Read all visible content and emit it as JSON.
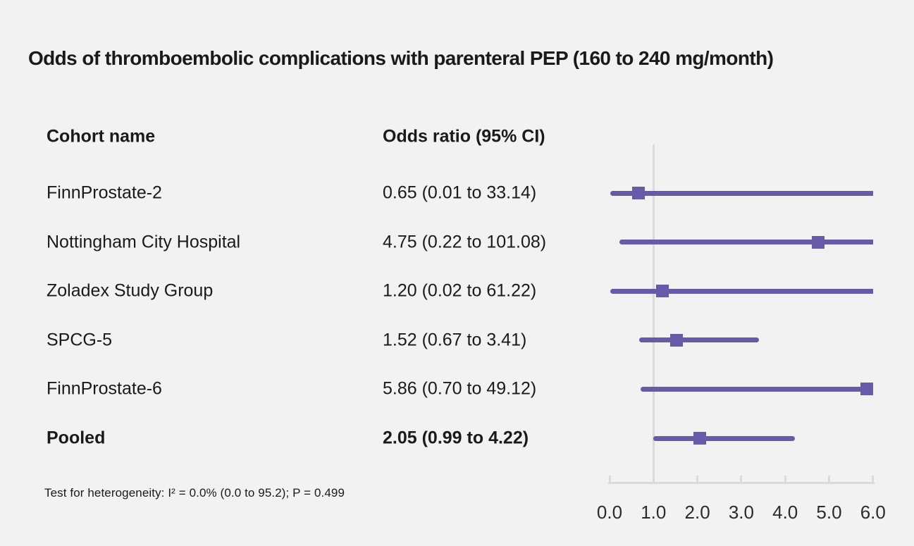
{
  "title": "Odds of thromboembolic complications with parenteral PEP (160 to 240 mg/month)",
  "columns": {
    "cohort": "Cohort name",
    "odds_ratio": "Odds ratio (95% CI)"
  },
  "footnote": "Test for heterogeneity: I² = 0.0% (0.0 to 95.2); P = 0.499",
  "colors": {
    "accent": "#675AA8",
    "axis": "#D7DBDE",
    "background": "#F2F2F2",
    "text": "#1A1A1A"
  },
  "chart_data": {
    "type": "scatter",
    "subtype": "forest-plot",
    "x_range": [
      0.0,
      6.0
    ],
    "x_ticks": [
      "0.0",
      "1.0",
      "2.0",
      "3.0",
      "4.0",
      "5.0",
      "6.0"
    ],
    "x_tick_values": [
      0,
      1,
      2,
      3,
      4,
      5,
      6
    ],
    "reference_line_value": 1.0,
    "grid": false,
    "legend": "none",
    "rows": [
      {
        "name": "FinnProstate-2",
        "or_label": "0.65 (0.01 to 33.14)",
        "or": 0.65,
        "lo": 0.01,
        "hi": 33.14,
        "bold": false
      },
      {
        "name": "Nottingham City Hospital",
        "or_label": "4.75 (0.22 to 101.08)",
        "or": 4.75,
        "lo": 0.22,
        "hi": 101.08,
        "bold": false
      },
      {
        "name": "Zoladex Study Group",
        "or_label": "1.20 (0.02 to 61.22)",
        "or": 1.2,
        "lo": 0.02,
        "hi": 61.22,
        "bold": false
      },
      {
        "name": "SPCG-5",
        "or_label": "1.52 (0.67 to 3.41)",
        "or": 1.52,
        "lo": 0.67,
        "hi": 3.41,
        "bold": false
      },
      {
        "name": "FinnProstate-6",
        "or_label": "5.86 (0.70 to 49.12)",
        "or": 5.86,
        "lo": 0.7,
        "hi": 49.12,
        "bold": false
      },
      {
        "name": "Pooled",
        "or_label": "2.05 (0.99 to 4.22)",
        "or": 2.05,
        "lo": 0.99,
        "hi": 4.22,
        "bold": true
      }
    ]
  }
}
